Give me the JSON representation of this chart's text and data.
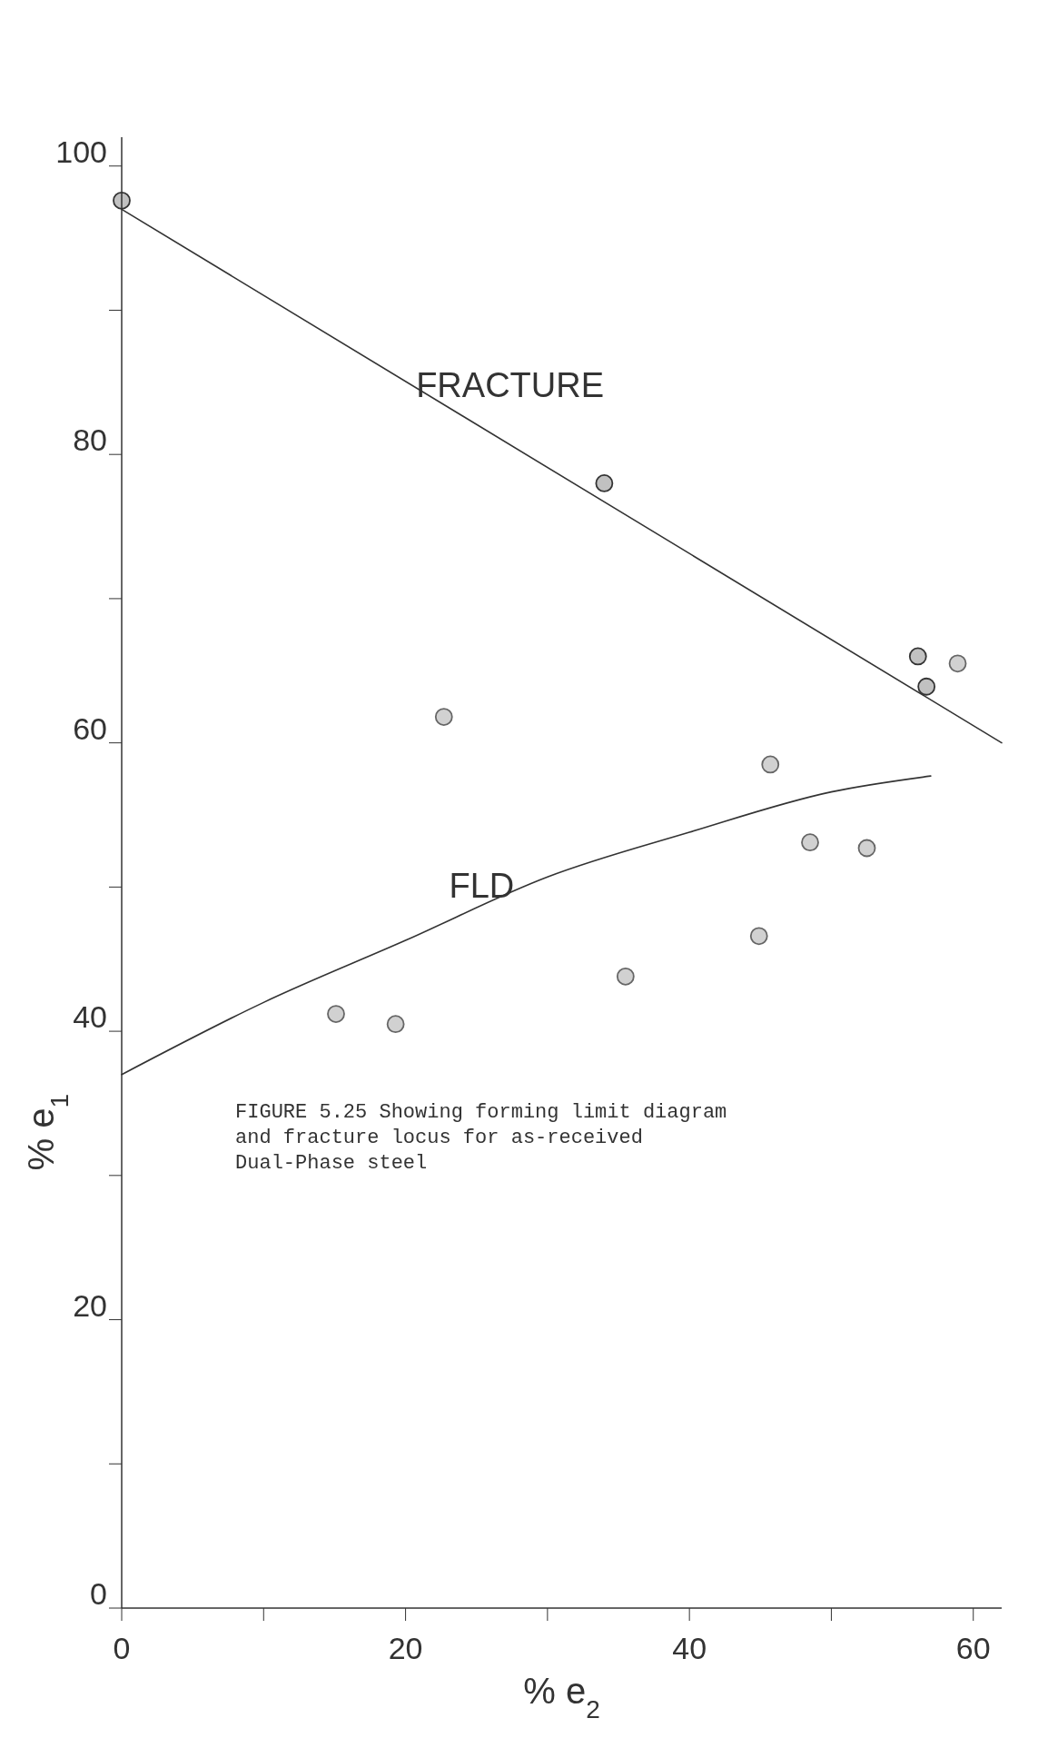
{
  "chart_data": {
    "type": "scatter",
    "xlabel": "% e$_{2}$",
    "ylabel": "% e$_{1}$",
    "xlim": [
      0,
      62
    ],
    "ylim": [
      0,
      102
    ],
    "xticks": [
      0,
      {
        "value": 10,
        "label": null
      },
      20,
      {
        "value": 30,
        "label": null
      },
      40,
      {
        "value": 50,
        "label": null
      },
      60
    ],
    "yticks": [
      0,
      {
        "value": 10,
        "label": null
      },
      20,
      {
        "value": 30,
        "label": null
      },
      40,
      {
        "value": 50,
        "label": null
      },
      60,
      {
        "value": 70,
        "label": null
      },
      80,
      {
        "value": 90,
        "label": null
      },
      100
    ],
    "grid": false,
    "series": [
      {
        "type": "line",
        "name": "FRACTURE",
        "color": "#333333",
        "x": [
          0,
          62
        ],
        "values": [
          97,
          60
        ]
      },
      {
        "type": "line",
        "name": "FLD",
        "color": "#333333",
        "x": [
          0,
          10,
          20,
          30,
          40,
          50,
          57
        ],
        "values": [
          37,
          42,
          46.3,
          50.7,
          53.8,
          56.6,
          57.7
        ]
      },
      {
        "marker": "circle",
        "color": "#333333",
        "x": [
          0,
          34,
          56.1,
          56.7
        ],
        "values": [
          97.6,
          78,
          66,
          63.9
        ]
      },
      {
        "marker": "circle",
        "color": "#666666",
        "x": [
          15.1,
          19.3,
          22.7,
          35.5,
          44.9,
          45.7,
          48.5,
          52.5,
          58.9
        ],
        "values": [
          41.2,
          40.5,
          61.8,
          43.8,
          46.6,
          58.5,
          53.1,
          52.7,
          65.5
        ]
      }
    ],
    "annotations": [
      "FIGURE 5.25 Showing forming limit diagram and fracture locus for as-received Dual-Phase steel"
    ]
  }
}
